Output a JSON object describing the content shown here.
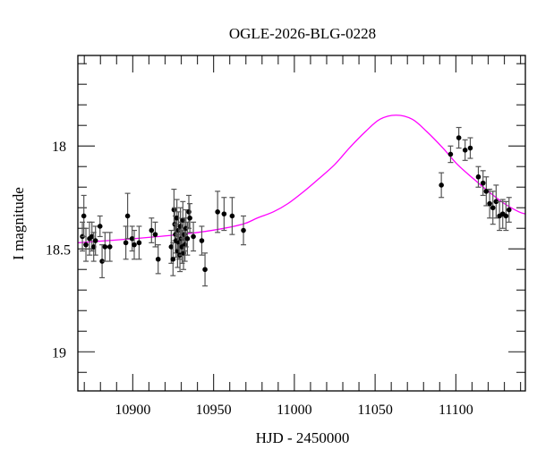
{
  "chart_data": {
    "type": "scatter",
    "title": "OGLE-2026-BLG-0228",
    "xlabel": "HJD - 2450000",
    "ylabel": "I magnitude",
    "xlim": [
      10866,
      11143
    ],
    "ylim": [
      17.56,
      19.19
    ],
    "y_inverted": true,
    "grid": false,
    "x_ticks": [
      10900,
      10950,
      11000,
      11050,
      11100
    ],
    "x_tick_labels": [
      "10900",
      "10950",
      "11000",
      "11050",
      "11100"
    ],
    "x_minor_step": 10,
    "y_ticks": [
      18,
      18.5,
      19
    ],
    "y_tick_labels": [
      "18",
      "18.5",
      "19"
    ],
    "y_minor_step": 0.1,
    "colors": {
      "points": "#000000",
      "errorbars": "#555555",
      "model": "#ff00ff"
    },
    "series": [
      {
        "type": "scatter-errorbar",
        "x": [
          10868.8,
          10869.7,
          10871,
          10873.2,
          10874.7,
          10875.8,
          10876.9,
          10879.7,
          10881,
          10882.8,
          10885.8,
          10895.7,
          10896.8,
          10899.6,
          10900.9,
          10903.9,
          10911.6,
          10913.9,
          10915.7,
          10923.8,
          10924.9,
          10925.5,
          10926,
          10926.4,
          10926.8,
          10927.3,
          10927.7,
          10928.3,
          10928.6,
          10929.2,
          10929.5,
          10930.1,
          10930.5,
          10931,
          10931.4,
          10932,
          10932.3,
          10932.9,
          10933.8,
          10934.7,
          10935.3,
          10937.5,
          10942.7,
          10944.7,
          10952.5,
          10956.5,
          10961.5,
          10968.5,
          11091,
          11096.7,
          11101.8,
          11105.7,
          11108.9,
          11113.9,
          11116.8,
          11118.8,
          11120.9,
          11122.9,
          11124.9,
          11127,
          11129,
          11131,
          11132.9
        ],
        "y": [
          18.44,
          18.34,
          18.48,
          18.45,
          18.44,
          18.49,
          18.46,
          18.39,
          18.56,
          18.49,
          18.49,
          18.47,
          18.34,
          18.45,
          18.48,
          18.47,
          18.41,
          18.43,
          18.55,
          18.49,
          18.55,
          18.31,
          18.38,
          18.43,
          18.46,
          18.35,
          18.51,
          18.41,
          18.47,
          18.53,
          18.39,
          18.45,
          18.49,
          18.36,
          18.52,
          18.43,
          18.48,
          18.4,
          18.45,
          18.32,
          18.35,
          18.44,
          18.46,
          18.6,
          18.32,
          18.33,
          18.34,
          18.41,
          18.19,
          18.04,
          17.96,
          18.02,
          18.01,
          18.15,
          18.18,
          18.22,
          18.28,
          18.3,
          18.27,
          18.34,
          18.33,
          18.34,
          18.31
        ],
        "err": [
          0.07,
          0.1,
          0.08,
          0.08,
          0.07,
          0.07,
          0.07,
          0.05,
          0.08,
          0.07,
          0.07,
          0.08,
          0.11,
          0.06,
          0.07,
          0.08,
          0.06,
          0.06,
          0.07,
          0.08,
          0.08,
          0.1,
          0.08,
          0.09,
          0.08,
          0.09,
          0.08,
          0.09,
          0.08,
          0.08,
          0.09,
          0.08,
          0.08,
          0.09,
          0.08,
          0.08,
          0.08,
          0.09,
          0.08,
          0.08,
          0.07,
          0.07,
          0.07,
          0.08,
          0.1,
          0.08,
          0.09,
          0.07,
          0.06,
          0.04,
          0.05,
          0.05,
          0.05,
          0.05,
          0.06,
          0.07,
          0.07,
          0.08,
          0.08,
          0.07,
          0.07,
          0.07,
          0.06
        ]
      },
      {
        "type": "line",
        "x": [
          10866,
          10901,
          10929,
          10949,
          10968,
          10977,
          10987,
          10996,
          11006,
          11015,
          11025,
          11034,
          11044,
          11053,
          11063,
          11073,
          11082,
          11092,
          11101,
          11111,
          11120,
          11130,
          11139,
          11143
        ],
        "y": [
          18.47,
          18.45,
          18.43,
          18.41,
          18.38,
          18.35,
          18.32,
          18.28,
          18.22,
          18.16,
          18.09,
          18.01,
          17.93,
          17.87,
          17.85,
          17.87,
          17.93,
          18.01,
          18.09,
          18.16,
          18.22,
          18.28,
          18.32,
          18.33
        ]
      }
    ]
  }
}
